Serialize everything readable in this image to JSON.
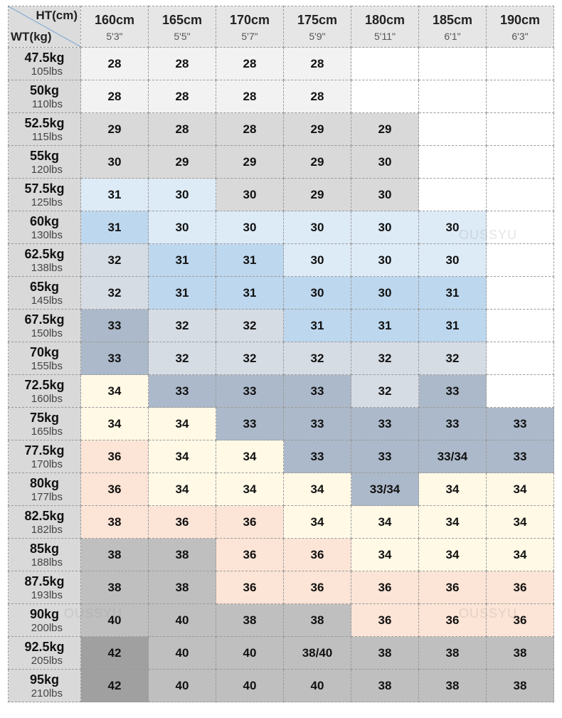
{
  "header": {
    "height_label": "HT(cm)",
    "weight_label": "WT(kg)",
    "columns": [
      {
        "cm": "160cm",
        "ft": "5'3\""
      },
      {
        "cm": "165cm",
        "ft": "5'5\""
      },
      {
        "cm": "170cm",
        "ft": "5'7\""
      },
      {
        "cm": "175cm",
        "ft": "5'9\""
      },
      {
        "cm": "180cm",
        "ft": "5'11\""
      },
      {
        "cm": "185cm",
        "ft": "6'1\""
      },
      {
        "cm": "190cm",
        "ft": "6'3\""
      }
    ]
  },
  "table": {
    "rows": [
      {
        "kg": "47.5kg",
        "lbs": "105lbs",
        "sizes": [
          "28",
          "28",
          "28",
          "28"
        ]
      },
      {
        "kg": "50kg",
        "lbs": "110lbs",
        "sizes": [
          "28",
          "28",
          "28",
          "28"
        ]
      },
      {
        "kg": "52.5kg",
        "lbs": "115lbs",
        "sizes": [
          "29",
          "28",
          "28",
          "29",
          "29"
        ]
      },
      {
        "kg": "55kg",
        "lbs": "120lbs",
        "sizes": [
          "30",
          "29",
          "29",
          "29",
          "30"
        ]
      },
      {
        "kg": "57.5kg",
        "lbs": "125lbs",
        "sizes": [
          "31",
          "30",
          "30",
          "29",
          "30"
        ]
      },
      {
        "kg": "60kg",
        "lbs": "130lbs",
        "sizes": [
          "31",
          "30",
          "30",
          "30",
          "30",
          "30"
        ]
      },
      {
        "kg": "62.5kg",
        "lbs": "138lbs",
        "sizes": [
          "32",
          "31",
          "31",
          "30",
          "30",
          "30"
        ]
      },
      {
        "kg": "65kg",
        "lbs": "145lbs",
        "sizes": [
          "32",
          "31",
          "31",
          "30",
          "30",
          "31"
        ]
      },
      {
        "kg": "67.5kg",
        "lbs": "150lbs",
        "sizes": [
          "33",
          "32",
          "32",
          "31",
          "31",
          "31"
        ]
      },
      {
        "kg": "70kg",
        "lbs": "155lbs",
        "sizes": [
          "33",
          "32",
          "32",
          "32",
          "32",
          "32"
        ]
      },
      {
        "kg": "72.5kg",
        "lbs": "160lbs",
        "sizes": [
          "34",
          "33",
          "33",
          "33",
          "32",
          "33"
        ]
      },
      {
        "kg": "75kg",
        "lbs": "165lbs",
        "sizes": [
          "34",
          "34",
          "33",
          "33",
          "33",
          "33",
          "33"
        ]
      },
      {
        "kg": "77.5kg",
        "lbs": "170lbs",
        "sizes": [
          "36",
          "34",
          "34",
          "33",
          "33",
          "33/34",
          "33"
        ]
      },
      {
        "kg": "80kg",
        "lbs": "177lbs",
        "sizes": [
          "36",
          "34",
          "34",
          "34",
          "33/34",
          "34",
          "34"
        ]
      },
      {
        "kg": "82.5kg",
        "lbs": "182lbs",
        "sizes": [
          "38",
          "36",
          "36",
          "34",
          "34",
          "34",
          "34"
        ]
      },
      {
        "kg": "85kg",
        "lbs": "188lbs",
        "sizes": [
          "38",
          "38",
          "36",
          "36",
          "34",
          "34",
          "34"
        ]
      },
      {
        "kg": "87.5kg",
        "lbs": "193lbs",
        "sizes": [
          "38",
          "38",
          "36",
          "36",
          "36",
          "36",
          "36"
        ]
      },
      {
        "kg": "90kg",
        "lbs": "200lbs",
        "sizes": [
          "40",
          "40",
          "38",
          "38",
          "36",
          "36",
          "36"
        ]
      },
      {
        "kg": "92.5kg",
        "lbs": "205lbs",
        "sizes": [
          "42",
          "40",
          "40",
          "38/40",
          "38",
          "38",
          "38"
        ]
      },
      {
        "kg": "95kg",
        "lbs": "210lbs",
        "sizes": [
          "42",
          "40",
          "40",
          "40",
          "38",
          "38",
          "38"
        ]
      }
    ]
  },
  "watermark": "OUSSYU"
}
